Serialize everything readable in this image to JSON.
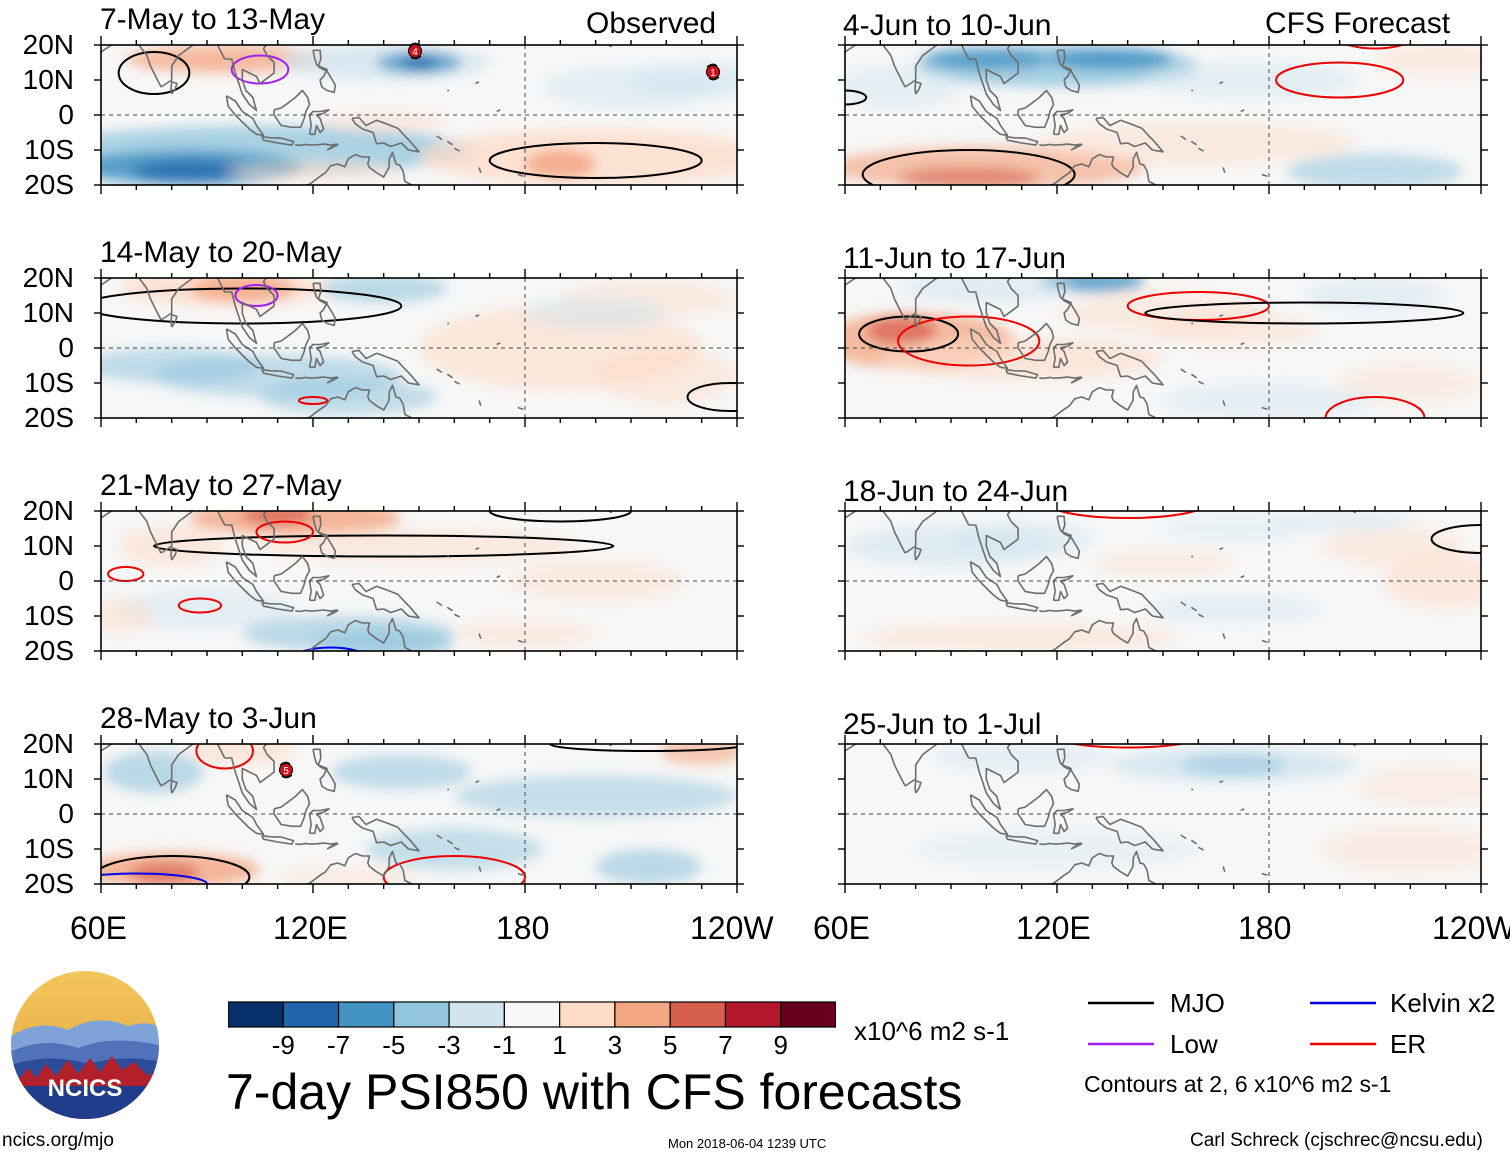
{
  "header": {
    "left_label": "Observed",
    "right_label": "CFS Forecast"
  },
  "panels": [
    {
      "period": "7-May to 13-May",
      "kind": "observed"
    },
    {
      "period": "14-May to 20-May",
      "kind": "observed"
    },
    {
      "period": "21-May to 27-May",
      "kind": "observed"
    },
    {
      "period": "28-May to 3-Jun",
      "kind": "observed"
    },
    {
      "period": "4-Jun to 10-Jun",
      "kind": "forecast"
    },
    {
      "period": "11-Jun to 17-Jun",
      "kind": "forecast"
    },
    {
      "period": "18-Jun to 24-Jun",
      "kind": "forecast"
    },
    {
      "period": "25-Jun to 1-Jul",
      "kind": "forecast"
    }
  ],
  "axes": {
    "lat_labels": [
      "20N",
      "10N",
      "0",
      "10S",
      "20S"
    ],
    "lon_labels": [
      "60E",
      "120E",
      "180",
      "120W"
    ]
  },
  "colorbar": {
    "ticks": [
      "-9",
      "-7",
      "-5",
      "-3",
      "-1",
      "1",
      "3",
      "5",
      "7",
      "9"
    ],
    "units": "x10^6 m2 s-1",
    "colors": [
      "#08306b",
      "#2166ac",
      "#4393c3",
      "#92c5de",
      "#d1e5f0",
      "#f7f7f7",
      "#fddbc7",
      "#f4a582",
      "#d6604d",
      "#b2182b",
      "#67001f"
    ]
  },
  "title": "7-day PSI850 with CFS forecasts",
  "legend": {
    "items": [
      {
        "label": "MJO",
        "color": "#000000"
      },
      {
        "label": "Kelvin x2",
        "color": "#0000ee"
      },
      {
        "label": "Low",
        "color": "#a020f0"
      },
      {
        "label": "ER",
        "color": "#ee0000"
      }
    ],
    "contours_note": "Contours at 2, 6 x10^6 m2 s-1"
  },
  "logo": {
    "text": "NCICS"
  },
  "footer": {
    "url": "ncics.org/mjo",
    "timestamp": "Mon 2018-06-04 1239 UTC",
    "credit": "Carl Schreck (cjschrec@ncsu.edu)"
  },
  "storm_markers": {
    "panel1": [
      "4",
      "1"
    ],
    "panel4": [
      "5"
    ]
  }
}
